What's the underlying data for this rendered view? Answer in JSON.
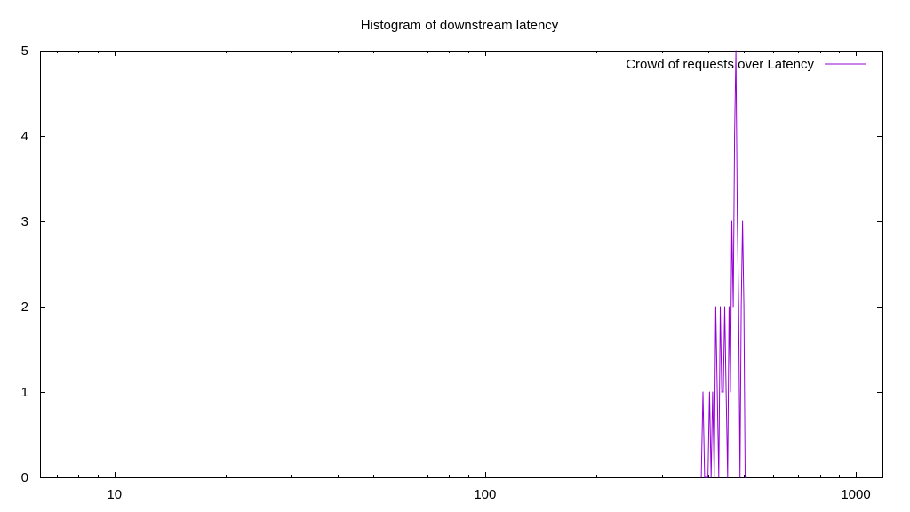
{
  "chart_data": {
    "type": "line",
    "title": "Histogram of downstream latency",
    "xlabel": "",
    "ylabel": "",
    "xscale": "log",
    "xlim": [
      6.3,
      1180
    ],
    "ylim": [
      0,
      5
    ],
    "x_ticks": [
      {
        "value": 10,
        "label": "10"
      },
      {
        "value": 100,
        "label": "100"
      },
      {
        "value": 1000,
        "label": "1000"
      }
    ],
    "y_ticks": [
      {
        "value": 0,
        "label": "0"
      },
      {
        "value": 1,
        "label": "1"
      },
      {
        "value": 2,
        "label": "2"
      },
      {
        "value": 3,
        "label": "3"
      },
      {
        "value": 4,
        "label": "4"
      },
      {
        "value": 5,
        "label": "5"
      }
    ],
    "grid": false,
    "legend_position": "top-right",
    "series": [
      {
        "name": "Crowd of requests over Latency",
        "color": "#9400d3",
        "points": [
          [
            383,
            0
          ],
          [
            387,
            1
          ],
          [
            391,
            0
          ],
          [
            395,
            0
          ],
          [
            399,
            0
          ],
          [
            403,
            1
          ],
          [
            407,
            0
          ],
          [
            411,
            1
          ],
          [
            415,
            0
          ],
          [
            419,
            2
          ],
          [
            423,
            1
          ],
          [
            427,
            0
          ],
          [
            431,
            2
          ],
          [
            435,
            1
          ],
          [
            439,
            1
          ],
          [
            443,
            2
          ],
          [
            447,
            1
          ],
          [
            451,
            0
          ],
          [
            455,
            2
          ],
          [
            459,
            1
          ],
          [
            463,
            3
          ],
          [
            467,
            2
          ],
          [
            471,
            4
          ],
          [
            475,
            5
          ],
          [
            479,
            3
          ],
          [
            483,
            2
          ],
          [
            487,
            0
          ],
          [
            491,
            2
          ],
          [
            495,
            3
          ],
          [
            499,
            2
          ],
          [
            503,
            0
          ],
          [
            507,
            0
          ]
        ]
      }
    ]
  }
}
